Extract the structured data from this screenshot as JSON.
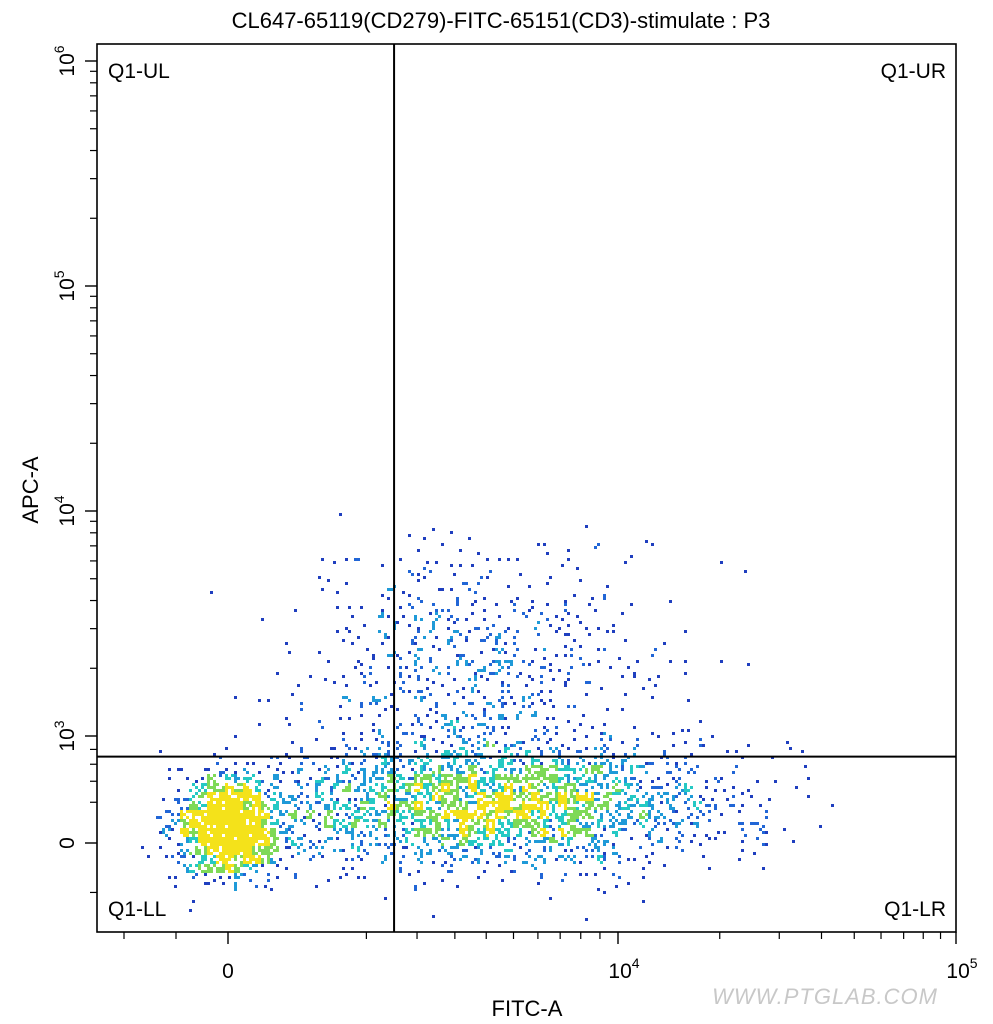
{
  "chart_data": {
    "type": "scatter",
    "subtype": "flow-cytometry-density-dot-plot",
    "title": "CL647-65119(CD279)-FITC-65151(CD3)-stimulate : P3",
    "xlabel": "FITC-A",
    "ylabel": "APC-A",
    "x_scale": "biexponential",
    "y_scale": "biexponential",
    "xlim": [
      -2500,
      100000
    ],
    "ylim": [
      -1800,
      1000000
    ],
    "x_ticks": [
      {
        "value": 0,
        "label": "0",
        "sup": ""
      },
      {
        "value": 10000,
        "label": "10",
        "sup": "4"
      },
      {
        "value": 100000,
        "label": "10",
        "sup": "5"
      }
    ],
    "y_ticks": [
      {
        "value": 0,
        "label": "0",
        "sup": ""
      },
      {
        "value": 1000,
        "label": "10",
        "sup": "3"
      },
      {
        "value": 10000,
        "label": "10",
        "sup": "4"
      },
      {
        "value": 100000,
        "label": "10",
        "sup": "5"
      },
      {
        "value": 1000000,
        "label": "10",
        "sup": "6"
      }
    ],
    "gates": {
      "x": 1500,
      "y": 700
    },
    "quadrant_labels": {
      "ul": "Q1-UL",
      "ur": "Q1-UR",
      "ll": "Q1-LL",
      "lr": "Q1-LR"
    },
    "colormap": [
      "#1f3fbf",
      "#2166d6",
      "#1f9ad8",
      "#25c9c4",
      "#7ed957",
      "#f4e21a"
    ],
    "populations": [
      {
        "name": "",
        "x_center": 0,
        "y_center": 50,
        "n": 1400
      },
      {
        "name": "",
        "x_center": 4200,
        "y_center": 200,
        "n": 2600
      },
      {
        "name": "",
        "x_center": 3600,
        "y_center": 1500,
        "n": 650
      }
    ],
    "grid": false,
    "legend": "none"
  },
  "watermark": "WWW.PTGLAB.COM"
}
